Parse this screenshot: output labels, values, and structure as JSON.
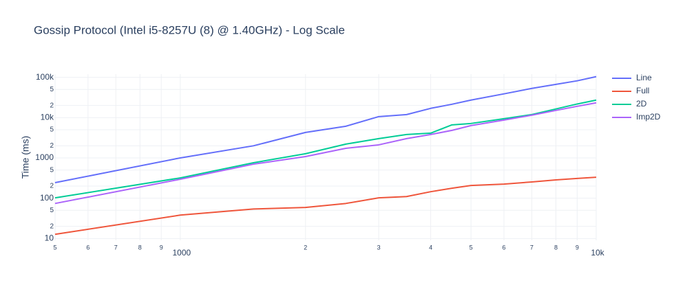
{
  "chart_data": {
    "type": "line",
    "title": "Gossip Protocol (Intel i5-8257U (8) @ 1.40GHz) - Log Scale",
    "y_label": "Time (ms)",
    "x_log": true,
    "y_log": true,
    "grid": true,
    "legend": "top-right",
    "x": [
      500,
      1000,
      1500,
      2000,
      2500,
      3000,
      3500,
      4000,
      4500,
      5000,
      6000,
      7000,
      8000,
      9000,
      10000
    ],
    "series": [
      {
        "name": "Line",
        "color": "#636efa",
        "values": [
          243,
          1000,
          2000,
          4290,
          6110,
          10600,
          11900,
          17000,
          21500,
          27300,
          38900,
          53200,
          67000,
          82000,
          104000
        ]
      },
      {
        "name": "Full",
        "color": "#ef553b",
        "values": [
          12.7,
          38,
          54,
          59,
          74,
          102,
          110,
          145,
          177,
          207,
          224,
          253,
          284,
          310,
          332
        ]
      },
      {
        "name": "2D",
        "color": "#00cc96",
        "values": [
          102,
          319,
          760,
          1270,
          2200,
          3010,
          3810,
          4120,
          6610,
          7160,
          9420,
          11900,
          16400,
          21800,
          27300
        ]
      },
      {
        "name": "Imp2D",
        "color": "#ab63fa",
        "values": [
          74,
          295,
          700,
          1080,
          1730,
          2110,
          3010,
          3810,
          4830,
          6350,
          8700,
          11500,
          15100,
          19100,
          23300
        ]
      }
    ],
    "xlim": [
      500,
      10000
    ],
    "xticks": [
      {
        "value": 500,
        "label": "5"
      },
      {
        "value": 600,
        "label": "6"
      },
      {
        "value": 700,
        "label": "7"
      },
      {
        "value": 800,
        "label": "8"
      },
      {
        "value": 900,
        "label": "9"
      },
      1000,
      {
        "value": 2000,
        "label": "2"
      },
      {
        "value": 3000,
        "label": "3"
      },
      {
        "value": 4000,
        "label": "4"
      },
      {
        "value": 5000,
        "label": "5"
      },
      {
        "value": 6000,
        "label": "6"
      },
      {
        "value": 7000,
        "label": "7"
      },
      {
        "value": 8000,
        "label": "8"
      },
      {
        "value": 9000,
        "label": "9"
      },
      {
        "value": 10000,
        "label": "10k"
      }
    ],
    "ylim": [
      9,
      120000
    ],
    "yticks": [
      10,
      {
        "value": 20,
        "label": "2"
      },
      {
        "value": 50,
        "label": "5"
      },
      100,
      {
        "value": 200,
        "label": "2"
      },
      {
        "value": 500,
        "label": "5"
      },
      1000,
      {
        "value": 2000,
        "label": "2"
      },
      {
        "value": 5000,
        "label": "5"
      },
      {
        "value": 10000,
        "label": "10k"
      },
      {
        "value": 20000,
        "label": "2"
      },
      {
        "value": 50000,
        "label": "5"
      },
      {
        "value": 100000,
        "label": "100k"
      }
    ]
  }
}
